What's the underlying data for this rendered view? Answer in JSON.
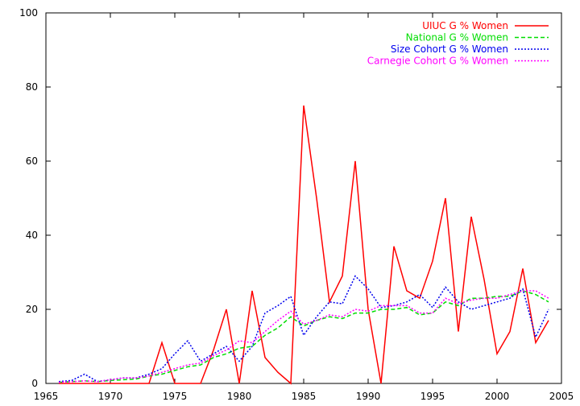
{
  "chart_data": {
    "type": "line",
    "title": "",
    "xlabel": "",
    "ylabel": "",
    "xlim": [
      1965,
      2005
    ],
    "ylim": [
      0,
      100
    ],
    "x_ticks": [
      1965,
      1970,
      1975,
      1980,
      1985,
      1990,
      1995,
      2000,
      2005
    ],
    "y_ticks": [
      0,
      20,
      40,
      60,
      80,
      100
    ],
    "grid": false,
    "legend_position": "top-right",
    "x": [
      1966,
      1967,
      1968,
      1969,
      1970,
      1971,
      1972,
      1973,
      1974,
      1975,
      1976,
      1977,
      1978,
      1979,
      1980,
      1981,
      1982,
      1983,
      1984,
      1985,
      1986,
      1987,
      1988,
      1989,
      1990,
      1991,
      1992,
      1993,
      1994,
      1995,
      1996,
      1997,
      1998,
      1999,
      2000,
      2001,
      2002,
      2003,
      2004
    ],
    "series": [
      {
        "name": "UIUC G % Women",
        "color": "#ff0000",
        "dash": "solid",
        "values": [
          0,
          0,
          0,
          0,
          0,
          0,
          0,
          0,
          11,
          0,
          0,
          0,
          9,
          20,
          0,
          25,
          7,
          3,
          0,
          75,
          50,
          22,
          29,
          60,
          20,
          0,
          37,
          25,
          23,
          33,
          50,
          14,
          45,
          28,
          8,
          14,
          31,
          11,
          17
        ]
      },
      {
        "name": "National G % Women",
        "color": "#00dd00",
        "dash": "dashed",
        "values": [
          0.3,
          0.5,
          0.7,
          0.5,
          0.8,
          1,
          1.2,
          2,
          2.5,
          3.5,
          4.5,
          5,
          7,
          8,
          9.5,
          10,
          13,
          15,
          18,
          15.5,
          17,
          18,
          17.5,
          19,
          19,
          20,
          20,
          20.5,
          18.5,
          19,
          22,
          21,
          23,
          23,
          23.5,
          23.5,
          25,
          24,
          22
        ]
      },
      {
        "name": "Size Cohort G % Women",
        "color": "#0000ee",
        "dash": "dotted",
        "values": [
          0.5,
          0.8,
          2.5,
          0.5,
          1,
          1.5,
          1.5,
          2.5,
          4,
          8,
          11.5,
          6,
          8,
          10,
          6,
          10,
          19,
          21,
          23.5,
          13,
          18,
          22,
          21.5,
          29,
          25.5,
          20.5,
          21,
          22,
          24,
          20.5,
          26,
          22,
          20,
          21,
          22,
          23,
          25.5,
          12.5,
          20
        ]
      },
      {
        "name": "Carnegie Cohort G % Women",
        "color": "#ff00ff",
        "dash": "dotted",
        "values": [
          0.3,
          0.5,
          0.7,
          0.5,
          1,
          1.5,
          1.5,
          2,
          3,
          4,
          5,
          5.5,
          7.5,
          9,
          11.5,
          11,
          14,
          17,
          19.5,
          16,
          17,
          18.5,
          18,
          20,
          19.5,
          21,
          21,
          21,
          19,
          19,
          23,
          21.5,
          22.5,
          23,
          23,
          24,
          25,
          25,
          23
        ]
      }
    ]
  }
}
